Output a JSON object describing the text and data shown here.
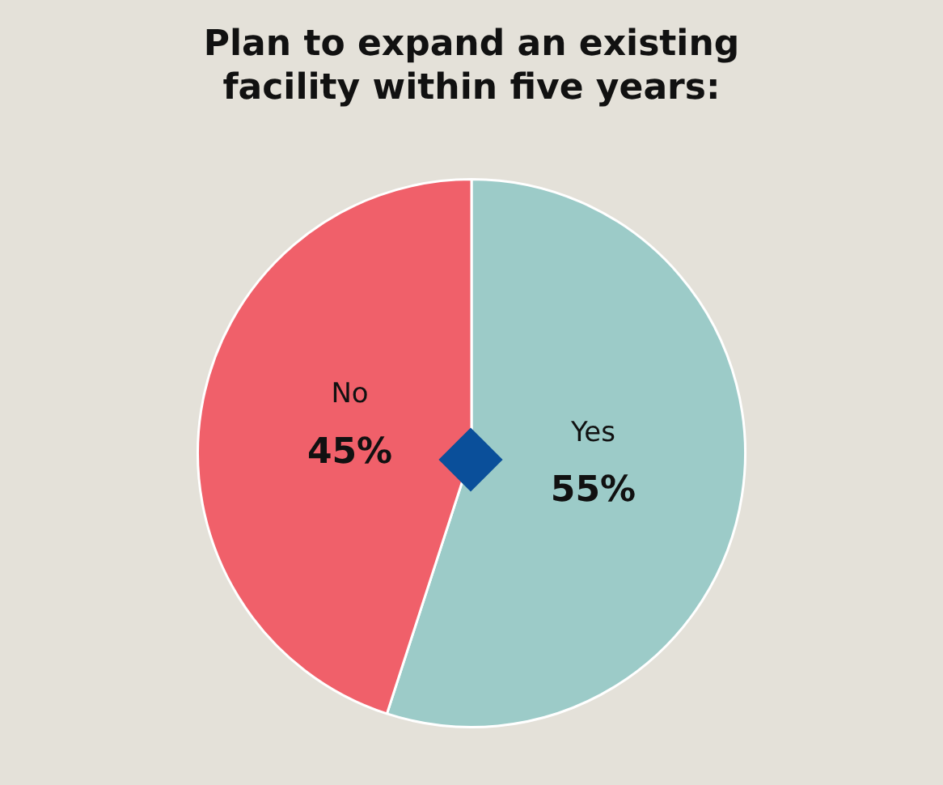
{
  "chart_data": {
    "type": "pie",
    "title": "Plan to expand an existing facility within five years:",
    "categories": [
      "Yes",
      "No"
    ],
    "values": [
      55,
      45
    ],
    "value_labels": [
      "55%",
      "45%"
    ],
    "colors": [
      "#9ccbc8",
      "#f0606a"
    ],
    "legend": false
  }
}
